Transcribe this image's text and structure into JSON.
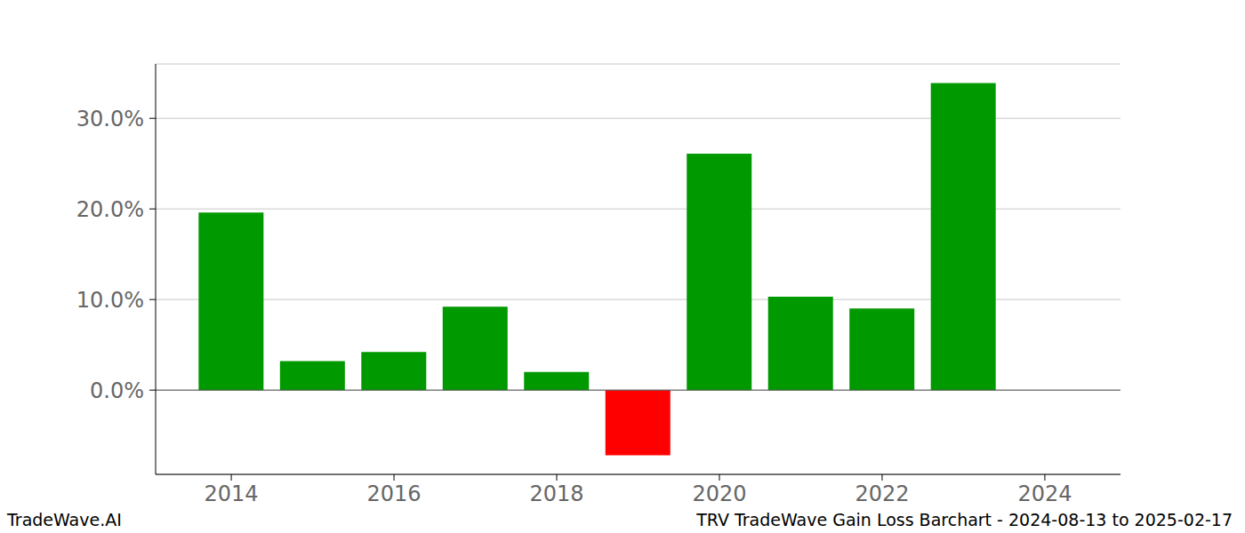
{
  "chart_data": {
    "type": "bar",
    "x": [
      2014,
      2015,
      2016,
      2017,
      2018,
      2019,
      2020,
      2021,
      2022,
      2023
    ],
    "values": [
      19.6,
      3.2,
      4.2,
      9.2,
      2.0,
      -7.2,
      26.1,
      10.3,
      9.0,
      33.9
    ],
    "colors": [
      "#009900",
      "#009900",
      "#009900",
      "#009900",
      "#009900",
      "#ff0000",
      "#009900",
      "#009900",
      "#009900",
      "#009900"
    ],
    "xlim": [
      2013.07,
      2024.93
    ],
    "xticks": [
      2014,
      2016,
      2018,
      2020,
      2022,
      2024
    ],
    "ylim": [
      -9.3,
      36
    ],
    "yticks": [
      {
        "value": 0,
        "label": "0.0%"
      },
      {
        "value": 10,
        "label": "10.0%"
      },
      {
        "value": 20,
        "label": "20.0%"
      },
      {
        "value": 30,
        "label": "30.0%"
      }
    ],
    "grid": true,
    "footer_left": "TradeWave.AI",
    "footer_right": "TRV TradeWave Gain Loss Barchart - 2024-08-13 to 2025-02-17"
  }
}
